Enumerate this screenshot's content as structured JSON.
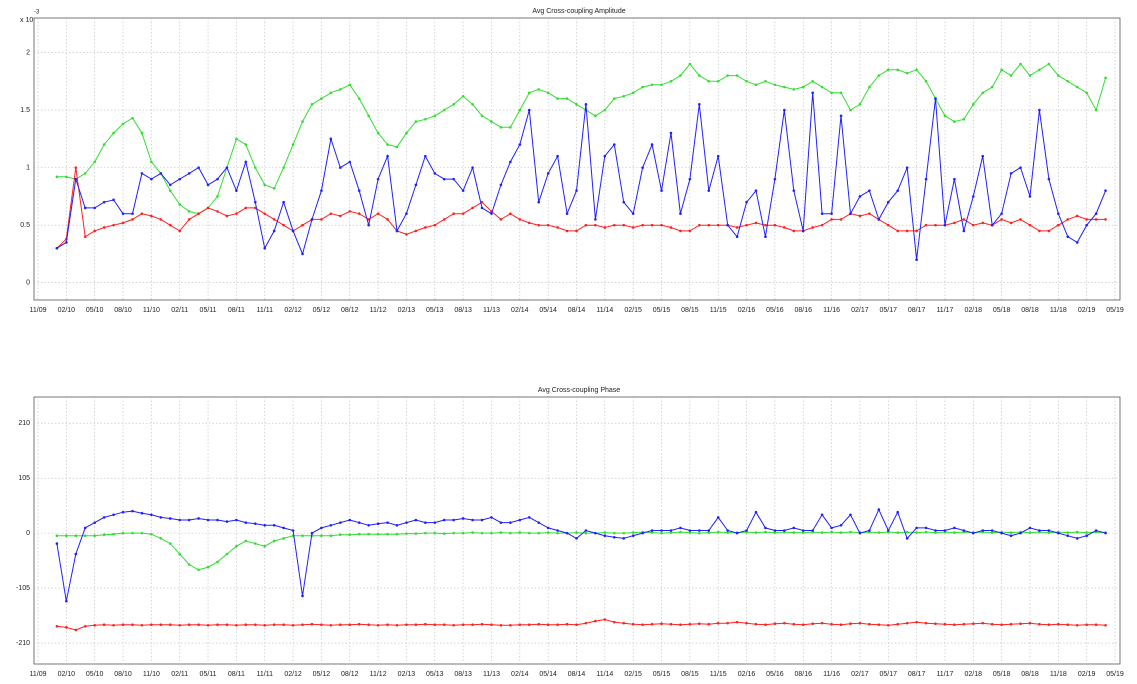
{
  "chart_data": [
    {
      "type": "line",
      "title": "Avg Cross-coupling Amplitude",
      "y_multiplier": "x 10",
      "y_exponent": "-3",
      "xlim": [
        "11/09",
        "05/19"
      ],
      "xticks": [
        "11/09",
        "02/10",
        "05/10",
        "08/10",
        "11/10",
        "02/11",
        "05/11",
        "08/11",
        "11/11",
        "02/12",
        "05/12",
        "08/12",
        "11/12",
        "02/13",
        "05/13",
        "08/13",
        "11/13",
        "02/14",
        "05/14",
        "08/14",
        "11/14",
        "02/15",
        "05/15",
        "08/15",
        "11/15",
        "02/16",
        "05/16",
        "08/16",
        "11/16",
        "02/17",
        "05/17",
        "08/17",
        "11/17",
        "02/18",
        "05/18",
        "08/18",
        "11/18",
        "02/19",
        "05/19"
      ],
      "ylim": [
        -0.15,
        2.3
      ],
      "yticks": [
        0,
        0.5,
        1,
        1.5,
        2
      ],
      "grid": true,
      "x": [
        "01/10",
        "02/10",
        "03/10",
        "04/10",
        "05/10",
        "06/10",
        "07/10",
        "08/10",
        "09/10",
        "10/10",
        "11/10",
        "12/10",
        "01/11",
        "02/11",
        "03/11",
        "04/11",
        "05/11",
        "06/11",
        "07/11",
        "08/11",
        "09/11",
        "10/11",
        "11/11",
        "12/11",
        "01/12",
        "02/12",
        "03/12",
        "04/12",
        "05/12",
        "06/12",
        "07/12",
        "08/12",
        "09/12",
        "10/12",
        "11/12",
        "12/12",
        "01/13",
        "02/13",
        "03/13",
        "04/13",
        "05/13",
        "06/13",
        "07/13",
        "08/13",
        "09/13",
        "10/13",
        "11/13",
        "12/13",
        "01/14",
        "02/14",
        "03/14",
        "04/14",
        "05/14",
        "06/14",
        "07/14",
        "08/14",
        "09/14",
        "10/14",
        "11/14",
        "12/14",
        "01/15",
        "02/15",
        "03/15",
        "04/15",
        "05/15",
        "06/15",
        "07/15",
        "08/15",
        "09/15",
        "10/15",
        "11/15",
        "12/15",
        "01/16",
        "02/16",
        "03/16",
        "04/16",
        "05/16",
        "06/16",
        "07/16",
        "08/16",
        "09/16",
        "10/16",
        "11/16",
        "12/16",
        "01/17",
        "02/17",
        "03/17",
        "04/17",
        "05/17",
        "06/17",
        "07/17",
        "08/17",
        "09/17",
        "10/17",
        "11/17",
        "12/17",
        "01/18",
        "02/18",
        "03/18",
        "04/18",
        "05/18",
        "06/18",
        "07/18",
        "08/18",
        "09/18",
        "10/18",
        "11/18",
        "12/18",
        "01/19",
        "02/19",
        "03/19",
        "04/19"
      ],
      "series": [
        {
          "color": "#33dd33",
          "values": [
            0.92,
            0.92,
            0.9,
            0.95,
            1.05,
            1.2,
            1.3,
            1.38,
            1.43,
            1.3,
            1.05,
            0.95,
            0.8,
            0.68,
            0.62,
            0.6,
            0.65,
            0.75,
            1.0,
            1.25,
            1.2,
            1.0,
            0.85,
            0.82,
            1.0,
            1.2,
            1.4,
            1.55,
            1.6,
            1.65,
            1.68,
            1.72,
            1.6,
            1.45,
            1.3,
            1.2,
            1.18,
            1.3,
            1.4,
            1.42,
            1.45,
            1.5,
            1.55,
            1.62,
            1.55,
            1.45,
            1.4,
            1.35,
            1.35,
            1.5,
            1.65,
            1.68,
            1.65,
            1.6,
            1.6,
            1.55,
            1.5,
            1.45,
            1.5,
            1.6,
            1.62,
            1.65,
            1.7,
            1.72,
            1.72,
            1.75,
            1.8,
            1.9,
            1.8,
            1.75,
            1.75,
            1.8,
            1.8,
            1.75,
            1.72,
            1.75,
            1.72,
            1.7,
            1.68,
            1.7,
            1.75,
            1.7,
            1.65,
            1.65,
            1.5,
            1.55,
            1.7,
            1.8,
            1.85,
            1.85,
            1.82,
            1.85,
            1.75,
            1.6,
            1.45,
            1.4,
            1.42,
            1.55,
            1.65,
            1.7,
            1.85,
            1.8,
            1.9,
            1.8,
            1.85,
            1.9,
            1.8,
            1.75,
            1.7,
            1.65,
            1.5,
            1.78
          ]
        },
        {
          "color": "#ff2020",
          "values": [
            0.3,
            0.38,
            1.0,
            0.4,
            0.45,
            0.48,
            0.5,
            0.52,
            0.55,
            0.6,
            0.58,
            0.55,
            0.5,
            0.45,
            0.55,
            0.6,
            0.65,
            0.62,
            0.58,
            0.6,
            0.65,
            0.65,
            0.6,
            0.55,
            0.5,
            0.45,
            0.5,
            0.55,
            0.55,
            0.6,
            0.58,
            0.62,
            0.6,
            0.55,
            0.6,
            0.55,
            0.45,
            0.42,
            0.45,
            0.48,
            0.5,
            0.55,
            0.6,
            0.6,
            0.65,
            0.7,
            0.62,
            0.55,
            0.6,
            0.55,
            0.52,
            0.5,
            0.5,
            0.48,
            0.45,
            0.45,
            0.5,
            0.5,
            0.48,
            0.5,
            0.5,
            0.48,
            0.5,
            0.5,
            0.5,
            0.48,
            0.45,
            0.45,
            0.5,
            0.5,
            0.5,
            0.5,
            0.48,
            0.5,
            0.52,
            0.5,
            0.5,
            0.48,
            0.45,
            0.45,
            0.48,
            0.5,
            0.55,
            0.55,
            0.6,
            0.58,
            0.6,
            0.55,
            0.5,
            0.45,
            0.45,
            0.45,
            0.5,
            0.5,
            0.5,
            0.52,
            0.55,
            0.5,
            0.52,
            0.5,
            0.55,
            0.52,
            0.55,
            0.5,
            0.45,
            0.45,
            0.5,
            0.55,
            0.58,
            0.55,
            0.55,
            0.55
          ]
        },
        {
          "color": "#2020ff",
          "values": [
            0.3,
            0.35,
            0.9,
            0.65,
            0.65,
            0.7,
            0.72,
            0.6,
            0.6,
            0.95,
            0.9,
            0.95,
            0.85,
            0.9,
            0.95,
            1.0,
            0.85,
            0.9,
            1.0,
            0.8,
            1.05,
            0.7,
            0.3,
            0.45,
            0.7,
            0.45,
            0.25,
            0.55,
            0.8,
            1.25,
            1.0,
            1.05,
            0.8,
            0.5,
            0.9,
            1.1,
            0.45,
            0.6,
            0.85,
            1.1,
            0.95,
            0.9,
            0.9,
            0.8,
            1.0,
            0.65,
            0.6,
            0.85,
            1.05,
            1.2,
            1.5,
            0.7,
            0.95,
            1.1,
            0.6,
            0.8,
            1.55,
            0.55,
            1.1,
            1.2,
            0.7,
            0.6,
            1.0,
            1.2,
            0.8,
            1.3,
            0.6,
            0.9,
            1.55,
            0.8,
            1.1,
            0.5,
            0.4,
            0.7,
            0.8,
            0.4,
            0.9,
            1.5,
            0.8,
            0.45,
            1.65,
            0.6,
            0.6,
            1.45,
            0.6,
            0.75,
            0.8,
            0.55,
            0.7,
            0.8,
            1.0,
            0.2,
            0.9,
            1.6,
            0.5,
            0.9,
            0.45,
            0.75,
            1.1,
            0.5,
            0.6,
            0.95,
            1.0,
            0.75,
            1.5,
            0.9,
            0.6,
            0.4,
            0.35,
            0.5,
            0.6,
            0.8
          ]
        }
      ]
    },
    {
      "type": "line",
      "title": "Avg Cross-coupling Phase",
      "xlim": [
        "11/09",
        "05/19"
      ],
      "xticks": [
        "11/09",
        "02/10",
        "05/10",
        "08/10",
        "11/10",
        "02/11",
        "05/11",
        "08/11",
        "11/11",
        "02/12",
        "05/12",
        "08/12",
        "11/12",
        "02/13",
        "05/13",
        "08/13",
        "11/13",
        "02/14",
        "05/14",
        "08/14",
        "11/14",
        "02/15",
        "05/15",
        "08/15",
        "11/15",
        "02/16",
        "05/16",
        "08/16",
        "11/16",
        "02/17",
        "05/17",
        "08/17",
        "11/17",
        "02/18",
        "05/18",
        "08/18",
        "11/18",
        "02/19",
        "05/19"
      ],
      "ylim": [
        -250,
        260
      ],
      "yticks": [
        -210,
        -105,
        0,
        105,
        210
      ],
      "grid": true,
      "x": [
        "01/10",
        "02/10",
        "03/10",
        "04/10",
        "05/10",
        "06/10",
        "07/10",
        "08/10",
        "09/10",
        "10/10",
        "11/10",
        "12/10",
        "01/11",
        "02/11",
        "03/11",
        "04/11",
        "05/11",
        "06/11",
        "07/11",
        "08/11",
        "09/11",
        "10/11",
        "11/11",
        "12/11",
        "01/12",
        "02/12",
        "03/12",
        "04/12",
        "05/12",
        "06/12",
        "07/12",
        "08/12",
        "09/12",
        "10/12",
        "11/12",
        "12/12",
        "01/13",
        "02/13",
        "03/13",
        "04/13",
        "05/13",
        "06/13",
        "07/13",
        "08/13",
        "09/13",
        "10/13",
        "11/13",
        "12/13",
        "01/14",
        "02/14",
        "03/14",
        "04/14",
        "05/14",
        "06/14",
        "07/14",
        "08/14",
        "09/14",
        "10/14",
        "11/14",
        "12/14",
        "01/15",
        "02/15",
        "03/15",
        "04/15",
        "05/15",
        "06/15",
        "07/15",
        "08/15",
        "09/15",
        "10/15",
        "11/15",
        "12/15",
        "01/16",
        "02/16",
        "03/16",
        "04/16",
        "05/16",
        "06/16",
        "07/16",
        "08/16",
        "09/16",
        "10/16",
        "11/16",
        "12/16",
        "01/17",
        "02/17",
        "03/17",
        "04/17",
        "05/17",
        "06/17",
        "07/17",
        "08/17",
        "09/17",
        "10/17",
        "11/17",
        "12/17",
        "01/18",
        "02/18",
        "03/18",
        "04/18",
        "05/18",
        "06/18",
        "07/18",
        "08/18",
        "09/18",
        "10/18",
        "11/18",
        "12/18",
        "01/19",
        "02/19",
        "03/19",
        "04/19"
      ],
      "series": [
        {
          "color": "#ff2020",
          "values": [
            -178,
            -180,
            -185,
            -178,
            -176,
            -175,
            -176,
            -175,
            -175,
            -176,
            -175,
            -175,
            -175,
            -176,
            -175,
            -175,
            -176,
            -175,
            -175,
            -176,
            -175,
            -175,
            -176,
            -175,
            -175,
            -176,
            -175,
            -174,
            -175,
            -176,
            -175,
            -175,
            -174,
            -175,
            -176,
            -175,
            -176,
            -175,
            -175,
            -174,
            -175,
            -175,
            -176,
            -175,
            -175,
            -174,
            -175,
            -176,
            -176,
            -175,
            -175,
            -174,
            -175,
            -175,
            -174,
            -175,
            -172,
            -168,
            -165,
            -170,
            -172,
            -174,
            -175,
            -174,
            -173,
            -174,
            -175,
            -174,
            -173,
            -174,
            -172,
            -172,
            -170,
            -172,
            -174,
            -175,
            -173,
            -172,
            -174,
            -175,
            -173,
            -172,
            -174,
            -175,
            -173,
            -172,
            -174,
            -175,
            -176,
            -174,
            -172,
            -170,
            -172,
            -173,
            -174,
            -175,
            -174,
            -173,
            -172,
            -174,
            -175,
            -174,
            -173,
            -172,
            -174,
            -175,
            -174,
            -175,
            -176,
            -175,
            -175,
            -176
          ]
        },
        {
          "color": "#33dd33",
          "values": [
            -5,
            -5,
            -5,
            -5,
            -5,
            -3,
            -2,
            0,
            0,
            0,
            -2,
            -10,
            -20,
            -40,
            -60,
            -70,
            -65,
            -55,
            -40,
            -25,
            -15,
            -20,
            -25,
            -15,
            -10,
            -5,
            -5,
            -5,
            -5,
            -5,
            -3,
            -3,
            -2,
            -2,
            -2,
            -2,
            -2,
            -1,
            -1,
            0,
            0,
            -1,
            0,
            0,
            1,
            0,
            0,
            1,
            0,
            1,
            0,
            0,
            1,
            0,
            0,
            1,
            0,
            0,
            1,
            0,
            0,
            1,
            2,
            1,
            0,
            1,
            2,
            1,
            0,
            1,
            2,
            1,
            1,
            2,
            1,
            2,
            1,
            2,
            1,
            1,
            2,
            1,
            2,
            1,
            2,
            1,
            2,
            1,
            2,
            1,
            2,
            1,
            2,
            1,
            2,
            1,
            2,
            1,
            2,
            1,
            2,
            1,
            2,
            1,
            2,
            1,
            2,
            1,
            2,
            1,
            2,
            1
          ]
        },
        {
          "color": "#2020ff",
          "values": [
            -20,
            -130,
            -40,
            10,
            20,
            30,
            35,
            40,
            42,
            38,
            35,
            30,
            28,
            25,
            25,
            28,
            25,
            25,
            22,
            25,
            20,
            18,
            15,
            15,
            10,
            5,
            -120,
            0,
            10,
            15,
            20,
            25,
            20,
            15,
            18,
            20,
            15,
            20,
            25,
            20,
            20,
            25,
            25,
            28,
            25,
            25,
            30,
            20,
            20,
            25,
            30,
            20,
            10,
            5,
            0,
            -10,
            5,
            0,
            -5,
            -8,
            -10,
            -5,
            0,
            5,
            5,
            5,
            10,
            5,
            5,
            5,
            30,
            5,
            0,
            5,
            40,
            10,
            5,
            5,
            10,
            5,
            5,
            35,
            10,
            15,
            35,
            0,
            5,
            45,
            5,
            40,
            -10,
            10,
            10,
            5,
            5,
            10,
            5,
            0,
            5,
            5,
            0,
            -5,
            0,
            10,
            5,
            5,
            0,
            -5,
            -10,
            -5,
            5,
            0
          ]
        }
      ]
    }
  ]
}
